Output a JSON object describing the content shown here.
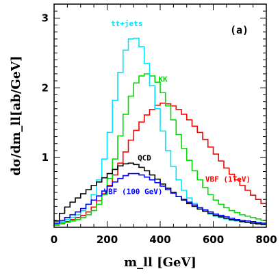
{
  "chart_data": {
    "type": "line",
    "step": true,
    "panel_label": "(a)",
    "xlabel": "m_ll [GeV]",
    "ylabel": "dσ/dm_ll[ab/GeV]",
    "xlim": [
      0,
      800
    ],
    "ylim": [
      0,
      3.2
    ],
    "x_ticks": [
      0,
      200,
      400,
      600,
      800
    ],
    "y_ticks": [
      1,
      2,
      3
    ],
    "bin_width": 20,
    "grid": false,
    "legend": "inline labels",
    "series": [
      {
        "name": "VBF (1TeV)",
        "color": "#ff0000",
        "x": [
          0,
          20,
          40,
          60,
          80,
          100,
          120,
          140,
          160,
          180,
          200,
          220,
          240,
          260,
          280,
          300,
          320,
          340,
          360,
          380,
          400,
          420,
          440,
          460,
          480,
          500,
          520,
          540,
          560,
          580,
          600,
          620,
          640,
          660,
          680,
          700,
          720,
          740,
          760,
          780
        ],
        "values": [
          0.04,
          0.06,
          0.08,
          0.11,
          0.14,
          0.17,
          0.22,
          0.29,
          0.38,
          0.48,
          0.6,
          0.75,
          0.92,
          1.08,
          1.25,
          1.39,
          1.51,
          1.61,
          1.69,
          1.75,
          1.78,
          1.77,
          1.74,
          1.69,
          1.62,
          1.54,
          1.45,
          1.36,
          1.26,
          1.15,
          1.05,
          0.95,
          0.85,
          0.76,
          0.68,
          0.6,
          0.53,
          0.46,
          0.4,
          0.34
        ]
      },
      {
        "name": "KK",
        "color": "#00dd00",
        "x": [
          0,
          20,
          40,
          60,
          80,
          100,
          120,
          140,
          160,
          180,
          200,
          220,
          240,
          260,
          280,
          300,
          320,
          340,
          360,
          380,
          400,
          420,
          440,
          460,
          480,
          500,
          520,
          540,
          560,
          580,
          600,
          620,
          640,
          660,
          680,
          700,
          720,
          740,
          760,
          780
        ],
        "values": [
          0.03,
          0.05,
          0.07,
          0.09,
          0.11,
          0.14,
          0.18,
          0.24,
          0.33,
          0.47,
          0.7,
          0.98,
          1.31,
          1.62,
          1.88,
          2.07,
          2.17,
          2.2,
          2.17,
          2.08,
          1.93,
          1.74,
          1.54,
          1.33,
          1.13,
          0.96,
          0.81,
          0.68,
          0.57,
          0.47,
          0.39,
          0.33,
          0.28,
          0.24,
          0.21,
          0.18,
          0.16,
          0.14,
          0.12,
          0.1
        ]
      },
      {
        "name": "tt+jets",
        "color": "#00e5ff",
        "x": [
          0,
          20,
          40,
          60,
          80,
          100,
          120,
          140,
          160,
          180,
          200,
          220,
          240,
          260,
          280,
          300,
          320,
          340,
          360,
          380,
          400,
          420,
          440,
          460,
          480,
          500,
          520,
          540,
          560,
          580,
          600,
          620,
          640,
          660,
          680,
          700,
          720,
          740,
          760,
          780
        ],
        "values": [
          0.05,
          0.08,
          0.11,
          0.14,
          0.18,
          0.24,
          0.33,
          0.47,
          0.68,
          0.98,
          1.36,
          1.82,
          2.22,
          2.54,
          2.7,
          2.71,
          2.59,
          2.35,
          2.03,
          1.7,
          1.38,
          1.1,
          0.87,
          0.68,
          0.53,
          0.42,
          0.34,
          0.28,
          0.23,
          0.19,
          0.16,
          0.14,
          0.12,
          0.1,
          0.09,
          0.08,
          0.07,
          0.06,
          0.05,
          0.05
        ]
      },
      {
        "name": "QCD",
        "color": "#000000",
        "x": [
          0,
          20,
          40,
          60,
          80,
          100,
          120,
          140,
          160,
          180,
          200,
          220,
          240,
          260,
          280,
          300,
          320,
          340,
          360,
          380,
          400,
          420,
          440,
          460,
          480,
          500,
          520,
          540,
          560,
          580,
          600,
          620,
          640,
          660,
          680,
          700,
          720,
          740,
          760,
          780
        ],
        "values": [
          0.09,
          0.2,
          0.29,
          0.36,
          0.42,
          0.48,
          0.54,
          0.6,
          0.65,
          0.71,
          0.77,
          0.83,
          0.88,
          0.91,
          0.92,
          0.9,
          0.86,
          0.81,
          0.75,
          0.69,
          0.62,
          0.56,
          0.5,
          0.44,
          0.39,
          0.34,
          0.3,
          0.26,
          0.23,
          0.2,
          0.17,
          0.15,
          0.13,
          0.11,
          0.1,
          0.08,
          0.07,
          0.06,
          0.05,
          0.04
        ]
      },
      {
        "name": "VBF (100 GeV)",
        "color": "#0000ff",
        "x": [
          0,
          20,
          40,
          60,
          80,
          100,
          120,
          140,
          160,
          180,
          200,
          220,
          240,
          260,
          280,
          300,
          320,
          340,
          360,
          380,
          400,
          420,
          440,
          460,
          480,
          500,
          520,
          540,
          560,
          580,
          600,
          620,
          640,
          660,
          680,
          700,
          720,
          740,
          760,
          780
        ],
        "values": [
          0.06,
          0.1,
          0.14,
          0.18,
          0.22,
          0.27,
          0.33,
          0.39,
          0.45,
          0.52,
          0.59,
          0.65,
          0.7,
          0.74,
          0.77,
          0.77,
          0.75,
          0.72,
          0.68,
          0.64,
          0.59,
          0.54,
          0.49,
          0.44,
          0.4,
          0.36,
          0.32,
          0.28,
          0.25,
          0.22,
          0.19,
          0.17,
          0.15,
          0.13,
          0.11,
          0.1,
          0.09,
          0.08,
          0.07,
          0.06
        ]
      }
    ]
  }
}
